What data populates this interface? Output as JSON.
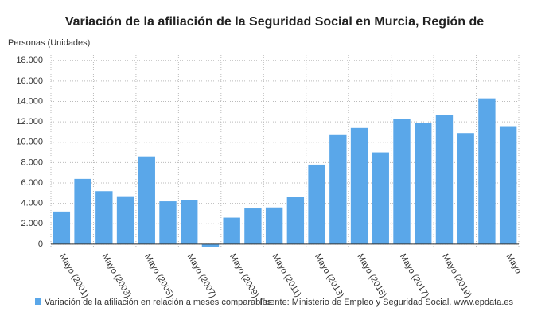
{
  "chart_data": {
    "type": "bar",
    "title": "Variación de la afiliación de la Seguridad Social en Murcia, Región de",
    "y_label": "Personas (Unidades)",
    "categories": [
      "Mayo (2001)",
      null,
      "Mayo (2003)",
      null,
      "Mayo (2005)",
      null,
      "Mayo (2007)",
      null,
      "Mayo (2009)",
      null,
      "Mayo (2011)",
      null,
      "Mayo (2013)",
      null,
      "Mayo (2015)",
      null,
      "Mayo (2017)",
      null,
      "Mayo (2019)",
      null,
      null,
      "Mayo"
    ],
    "series": [
      {
        "name": "Variación de la afiliación en relación a meses comparables",
        "color": "#5aa7e9",
        "values": [
          3200,
          6400,
          5200,
          4700,
          8600,
          4200,
          4300,
          -300,
          2600,
          3500,
          3600,
          4600,
          7800,
          10700,
          11400,
          9000,
          12300,
          11900,
          12700,
          10900,
          14300,
          11500
        ]
      }
    ],
    "ylim": [
      -400,
      18800
    ],
    "yticks": [
      0,
      {
        "value": 2000,
        "label": "2.000"
      },
      {
        "value": 4000,
        "label": "4.000"
      },
      {
        "value": 6000,
        "label": "6.000"
      },
      {
        "value": 8000,
        "label": "8.000"
      },
      {
        "value": 10000,
        "label": "10.000"
      },
      {
        "value": 12000,
        "label": "12.000"
      },
      {
        "value": 14000,
        "label": "14.000"
      },
      {
        "value": 16000,
        "label": "16.000"
      },
      {
        "value": 18000,
        "label": "18.000"
      }
    ],
    "grid": true,
    "source": "Fuente: Ministerio de Empleo y Seguridad Social, www.epdata.es"
  }
}
